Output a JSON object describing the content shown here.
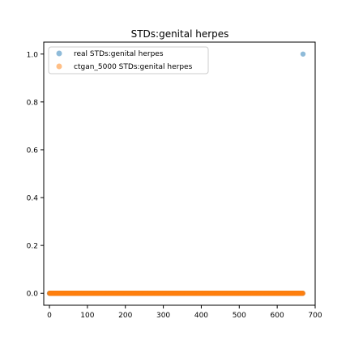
{
  "chart_data": {
    "type": "scatter",
    "title": "STDs:genital herpes",
    "xlabel": "",
    "ylabel": "",
    "xlim": [
      -15,
      700
    ],
    "ylim": [
      -0.05,
      1.05
    ],
    "xticks": [
      0,
      100,
      200,
      300,
      400,
      500,
      600,
      700
    ],
    "yticks": [
      0.0,
      0.2,
      0.4,
      0.6,
      0.8,
      1.0
    ],
    "xtick_labels": [
      "0",
      "100",
      "200",
      "300",
      "400",
      "500",
      "600",
      "700"
    ],
    "ytick_labels": [
      "0.0",
      "0.2",
      "0.4",
      "0.6",
      "0.8",
      "1.0"
    ],
    "grid": false,
    "legend_position": "top-left",
    "series": [
      {
        "name": "real STDs:genital herpes",
        "color": "#1f77b4",
        "alpha": 0.5,
        "x_range": [
          0,
          668
        ],
        "default_y": 0,
        "outliers": [
          {
            "x": 668,
            "y": 1
          }
        ]
      },
      {
        "name": "ctgan_5000 STDs:genital herpes",
        "color": "#ff7f0e",
        "alpha": 0.5,
        "x_range": [
          0,
          668
        ],
        "default_y": 0,
        "outliers": []
      }
    ]
  }
}
